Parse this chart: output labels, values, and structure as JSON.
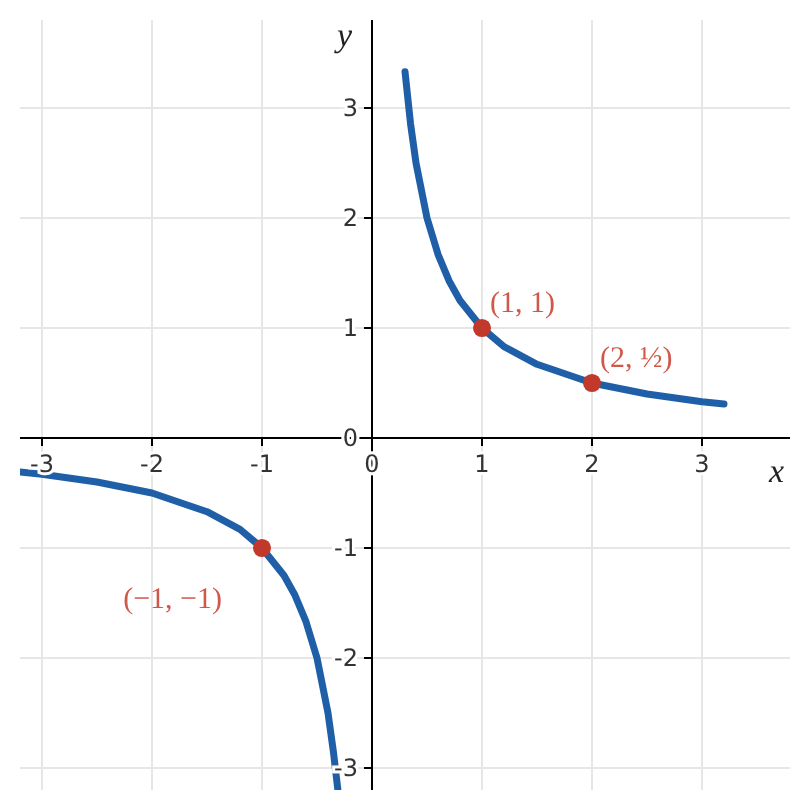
{
  "chart_data": {
    "type": "line",
    "xlabel": "x",
    "ylabel": "y",
    "xlim": [
      -3.2,
      3.8
    ],
    "ylim": [
      -3.2,
      3.8
    ],
    "xticks": [
      -3,
      -2,
      -1,
      0,
      1,
      2,
      3
    ],
    "yticks": [
      -3,
      -2,
      -1,
      0,
      1,
      2,
      3
    ],
    "grid": true,
    "legend": false,
    "line_style": "solid",
    "series": [
      {
        "type": "line",
        "color": "#1f5fa8",
        "marker": "none",
        "x": [
          0.3,
          0.35,
          0.4,
          0.5,
          0.6,
          0.7,
          0.8,
          1,
          1.2,
          1.5,
          2,
          2.5,
          3,
          3.2
        ],
        "values": [
          3.33,
          2.86,
          2.5,
          2,
          1.67,
          1.43,
          1.25,
          1,
          0.83,
          0.67,
          0.5,
          0.4,
          0.33,
          0.31
        ]
      },
      {
        "type": "line",
        "color": "#1f5fa8",
        "marker": "none",
        "x": [
          -3.2,
          -3,
          -2.5,
          -2,
          -1.5,
          -1.2,
          -1,
          -0.8,
          -0.7,
          -0.6,
          -0.5,
          -0.4,
          -0.35,
          -0.31
        ],
        "values": [
          -0.31,
          -0.33,
          -0.4,
          -0.5,
          -0.67,
          -0.83,
          -1,
          -1.25,
          -1.43,
          -1.67,
          -2,
          -2.5,
          -2.86,
          -3.2
        ]
      },
      {
        "type": "scatter",
        "color": "#c0392b",
        "marker": "circle",
        "x": [
          1,
          2,
          -1
        ],
        "values": [
          1,
          0.5,
          -1
        ]
      }
    ],
    "annotations": [
      {
        "text": "(1, 1)",
        "x": 1,
        "y": 1
      },
      {
        "text": "(2, ½)",
        "x": 2,
        "y": 0.5
      },
      {
        "text": "(−1, −1)",
        "x": -1,
        "y": -1
      }
    ]
  }
}
